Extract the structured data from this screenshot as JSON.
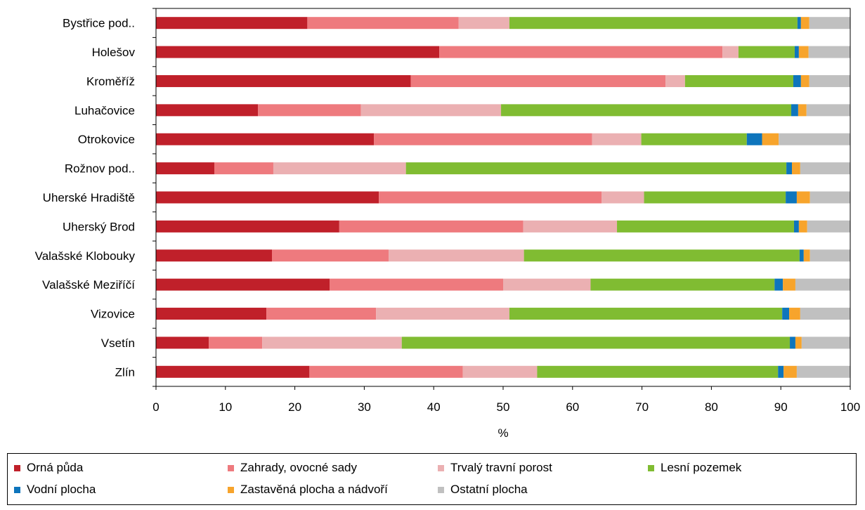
{
  "chart_data": {
    "type": "bar",
    "orientation": "horizontal",
    "stacked": true,
    "xlabel": "%",
    "xlim": [
      0,
      100
    ],
    "x_ticks": [
      "0",
      "10",
      "20",
      "30",
      "40",
      "50",
      "60",
      "70",
      "80",
      "90",
      "100"
    ],
    "grid": false,
    "legend_position": "bottom",
    "categories": [
      "Bystřice pod..",
      "Holešov",
      "Kroměříž",
      "Luhačovice",
      "Otrokovice",
      "Rožnov pod..",
      "Uherské Hradiště",
      "Uherský Brod",
      "Valašské Klobouky",
      "Valašské Meziříčí",
      "Vizovice",
      "Vsetín",
      "Zlín"
    ],
    "series": [
      {
        "name": "Orná půda",
        "color": "#C0202A",
        "values": [
          21.8,
          40.8,
          36.7,
          14.7,
          31.4,
          8.4,
          32.1,
          26.4,
          16.7,
          25.0,
          15.9,
          7.6,
          22.1
        ]
      },
      {
        "name": "Zahrady, ovocné sady",
        "color": "#EE7A7E",
        "values": [
          21.8,
          40.8,
          36.7,
          14.8,
          31.4,
          8.5,
          32.1,
          26.5,
          16.8,
          25.0,
          15.8,
          7.7,
          22.1
        ]
      },
      {
        "name": "Trvalý travní porost",
        "color": "#EBB0B2",
        "values": [
          7.3,
          2.3,
          2.8,
          20.2,
          7.1,
          19.1,
          6.1,
          13.5,
          19.5,
          12.6,
          19.2,
          20.1,
          10.7
        ]
      },
      {
        "name": "Lesní pozemek",
        "color": "#80BC32",
        "values": [
          41.5,
          8.1,
          15.6,
          41.8,
          15.2,
          54.8,
          20.4,
          25.5,
          39.7,
          26.5,
          39.3,
          55.9,
          34.7
        ]
      },
      {
        "name": "Vodní plocha",
        "color": "#0E75BC",
        "values": [
          0.5,
          0.6,
          1.1,
          1.0,
          2.2,
          0.8,
          1.6,
          0.7,
          0.6,
          1.2,
          1.0,
          0.8,
          0.8
        ]
      },
      {
        "name": "Zastavěná plocha a nádvoří",
        "color": "#F7A42C",
        "values": [
          1.2,
          1.4,
          1.2,
          1.2,
          2.4,
          1.2,
          1.9,
          1.2,
          0.9,
          1.8,
          1.6,
          0.9,
          1.9
        ]
      },
      {
        "name": "Ostatní plocha",
        "color": "#C0C0C0",
        "values": [
          5.9,
          6.0,
          5.9,
          6.3,
          10.3,
          7.2,
          5.8,
          6.2,
          5.8,
          7.9,
          7.2,
          7.0,
          7.7
        ]
      }
    ]
  }
}
